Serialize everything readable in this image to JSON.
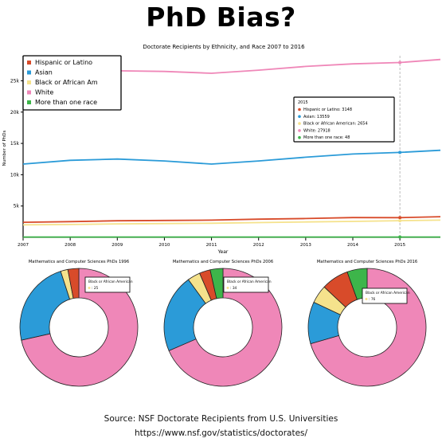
{
  "page": {
    "title": "PhD Bias?",
    "source": "Source: NSF Doctorate Recipients from U.S. Universities",
    "url": "https://www.nsf.gov/statistics/doctorates/"
  },
  "chart_data": [
    {
      "type": "line",
      "title": "Doctorate Recipients by Ethnicity, and Race 2007 to 2016",
      "xlabel": "Year",
      "ylabel": "Number of PhDs",
      "x": [
        2007,
        2008,
        2009,
        2010,
        2011,
        2012,
        2013,
        2014,
        2015,
        2016
      ],
      "xlim": [
        2007,
        2016
      ],
      "ylim": [
        0,
        29000
      ],
      "y_ticks": [
        "5k",
        "10k",
        "15k",
        "20k",
        "25k"
      ],
      "y_tick_values": [
        5000,
        10000,
        15000,
        20000,
        25000
      ],
      "x_ticks": [
        "2007",
        "2008",
        "2009",
        "2010",
        "2011",
        "2012",
        "2013",
        "2014",
        "2015"
      ],
      "grid": false,
      "legend": "top-left",
      "series": [
        {
          "name": "Hispanic or Latino",
          "color": "#d84b2a",
          "values": [
            2400,
            2500,
            2650,
            2700,
            2750,
            2900,
            3000,
            3150,
            3148,
            3300
          ]
        },
        {
          "name": "Asian",
          "color": "#2b9bd8",
          "values": [
            11700,
            12300,
            12500,
            12200,
            11700,
            12200,
            12800,
            13300,
            13559,
            13900
          ]
        },
        {
          "name": "Black or African Am",
          "color": "#f5e28c",
          "values": [
            2000,
            2050,
            2150,
            2200,
            2250,
            2350,
            2450,
            2550,
            2654,
            2750
          ]
        },
        {
          "name": "White",
          "color": "#ef87b8",
          "values": [
            26300,
            26800,
            26600,
            26500,
            26200,
            26700,
            27300,
            27700,
            27918,
            28400
          ]
        },
        {
          "name": "More than one race",
          "color": "#3db54a",
          "values": [
            50,
            50,
            50,
            50,
            50,
            50,
            50,
            50,
            48,
            50
          ]
        }
      ],
      "tooltip": {
        "year": "2015",
        "items": [
          {
            "label": "Hispanic or Latino: 3148",
            "color": "#d84b2a"
          },
          {
            "label": "Asian: 13559",
            "color": "#2b9bd8"
          },
          {
            "label": "Black or African American: 2654",
            "color": "#f5e28c"
          },
          {
            "label": "White: 27918",
            "color": "#ef87b8"
          },
          {
            "label": "More than one race: 48",
            "color": "#3db54a"
          }
        ]
      }
    },
    {
      "type": "pie",
      "donut": true,
      "title": "Mathematics and Computer Sciences PhDs 1996",
      "order": [
        "White",
        "Asian",
        "Black or African American",
        "Hispanic or Latino",
        "More than one race"
      ],
      "values": [
        71.5,
        23.5,
        2.0,
        3.0,
        0
      ],
      "colors": [
        "#ef87b8",
        "#2b9bd8",
        "#f5e28c",
        "#d84b2a",
        "#3db54a"
      ],
      "tooltip": {
        "title": "Black or African American",
        "value": "25"
      }
    },
    {
      "type": "pie",
      "donut": true,
      "title": "Mathematics and Computer Sciences PhDs 2006",
      "order": [
        "White",
        "Asian",
        "Black or African American",
        "Hispanic or Latino",
        "More than one race"
      ],
      "values": [
        68.5,
        21.5,
        3.5,
        3.0,
        3.5
      ],
      "colors": [
        "#ef87b8",
        "#2b9bd8",
        "#f5e28c",
        "#d84b2a",
        "#3db54a"
      ],
      "tooltip": {
        "title": "Black or African American",
        "value": "34"
      }
    },
    {
      "type": "pie",
      "donut": true,
      "title": "Mathematics and Computer Sciences PhDs 2016",
      "order": [
        "White",
        "Asian",
        "Black or African American",
        "Hispanic or Latino",
        "More than one race"
      ],
      "values": [
        70.5,
        11.5,
        5.0,
        7.5,
        5.5
      ],
      "colors": [
        "#ef87b8",
        "#2b9bd8",
        "#f5e28c",
        "#d84b2a",
        "#3db54a"
      ],
      "tooltip": {
        "title": "Black or African American",
        "value": "76"
      }
    }
  ]
}
